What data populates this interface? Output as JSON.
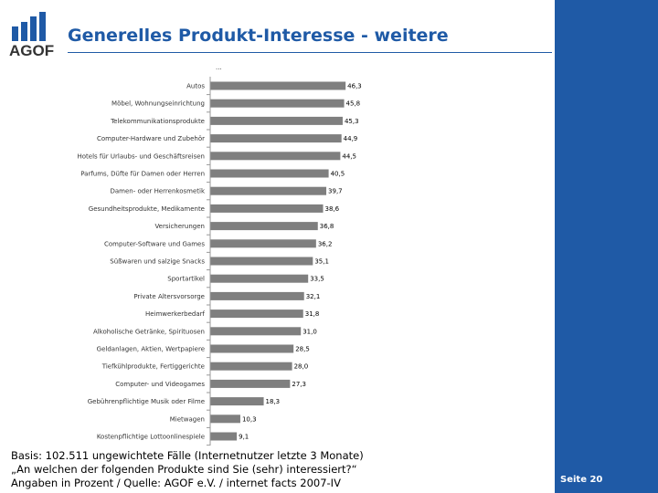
{
  "header": {
    "title": "Generelles Produkt-Interesse - weitere",
    "logo_text": "AGOF"
  },
  "chart_data": {
    "type": "bar",
    "orientation": "horizontal",
    "title": "",
    "legend_label": "...",
    "categories": [
      "Autos",
      "Möbel, Wohnungseinrichtung",
      "Telekommunikationsprodukte",
      "Computer-Hardware und Zubehör",
      "Hotels für Urlaubs- und Geschäftsreisen",
      "Parfums, Düfte für Damen oder Herren",
      "Damen- oder Herrenkosmetik",
      "Gesundheitsprodukte, Medikamente",
      "Versicherungen",
      "Computer-Software und Games",
      "Süßwaren und salzige Snacks",
      "Sportartikel",
      "Private Altersvorsorge",
      "Heimwerkerbedarf",
      "Alkoholische Getränke, Spirituosen",
      "Geldanlagen, Aktien, Wertpapiere",
      "Tiefkühlprodukte, Fertiggerichte",
      "Computer- und Videogames",
      "Gebührenpflichtige Musik oder Filme",
      "Mietwagen",
      "Kostenpflichtige Lottoonlinespiele"
    ],
    "values": [
      46.3,
      45.8,
      45.3,
      44.9,
      44.5,
      40.5,
      39.7,
      38.6,
      36.8,
      36.2,
      35.1,
      33.5,
      32.1,
      31.8,
      31.0,
      28.5,
      28.0,
      27.3,
      18.3,
      10.3,
      9.1
    ],
    "value_labels": [
      "46,3",
      "45,8",
      "45,3",
      "44,9",
      "44,5",
      "40,5",
      "39,7",
      "38,6",
      "36,8",
      "36,2",
      "35,1",
      "33,5",
      "32,1",
      "31,8",
      "31,0",
      "28,5",
      "28,0",
      "27,3",
      "18,3",
      "10,3",
      "9,1"
    ],
    "xlim": [
      0,
      50
    ],
    "bar_color": "#7f7f7f",
    "grid": false
  },
  "footnote": {
    "line1": "Basis: 102.511 ungewichtete Fälle (Internetnutzer letzte 3 Monate)",
    "line2": "„An welchen der folgenden Produkte sind Sie (sehr) interessiert?“",
    "line3": "Angaben in Prozent / Quelle: AGOF e.V. / internet facts 2007-IV"
  },
  "page": {
    "number_label": "Seite 20"
  },
  "colors": {
    "brand_blue": "#1f5aa6",
    "bar_gray": "#7f7f7f"
  }
}
